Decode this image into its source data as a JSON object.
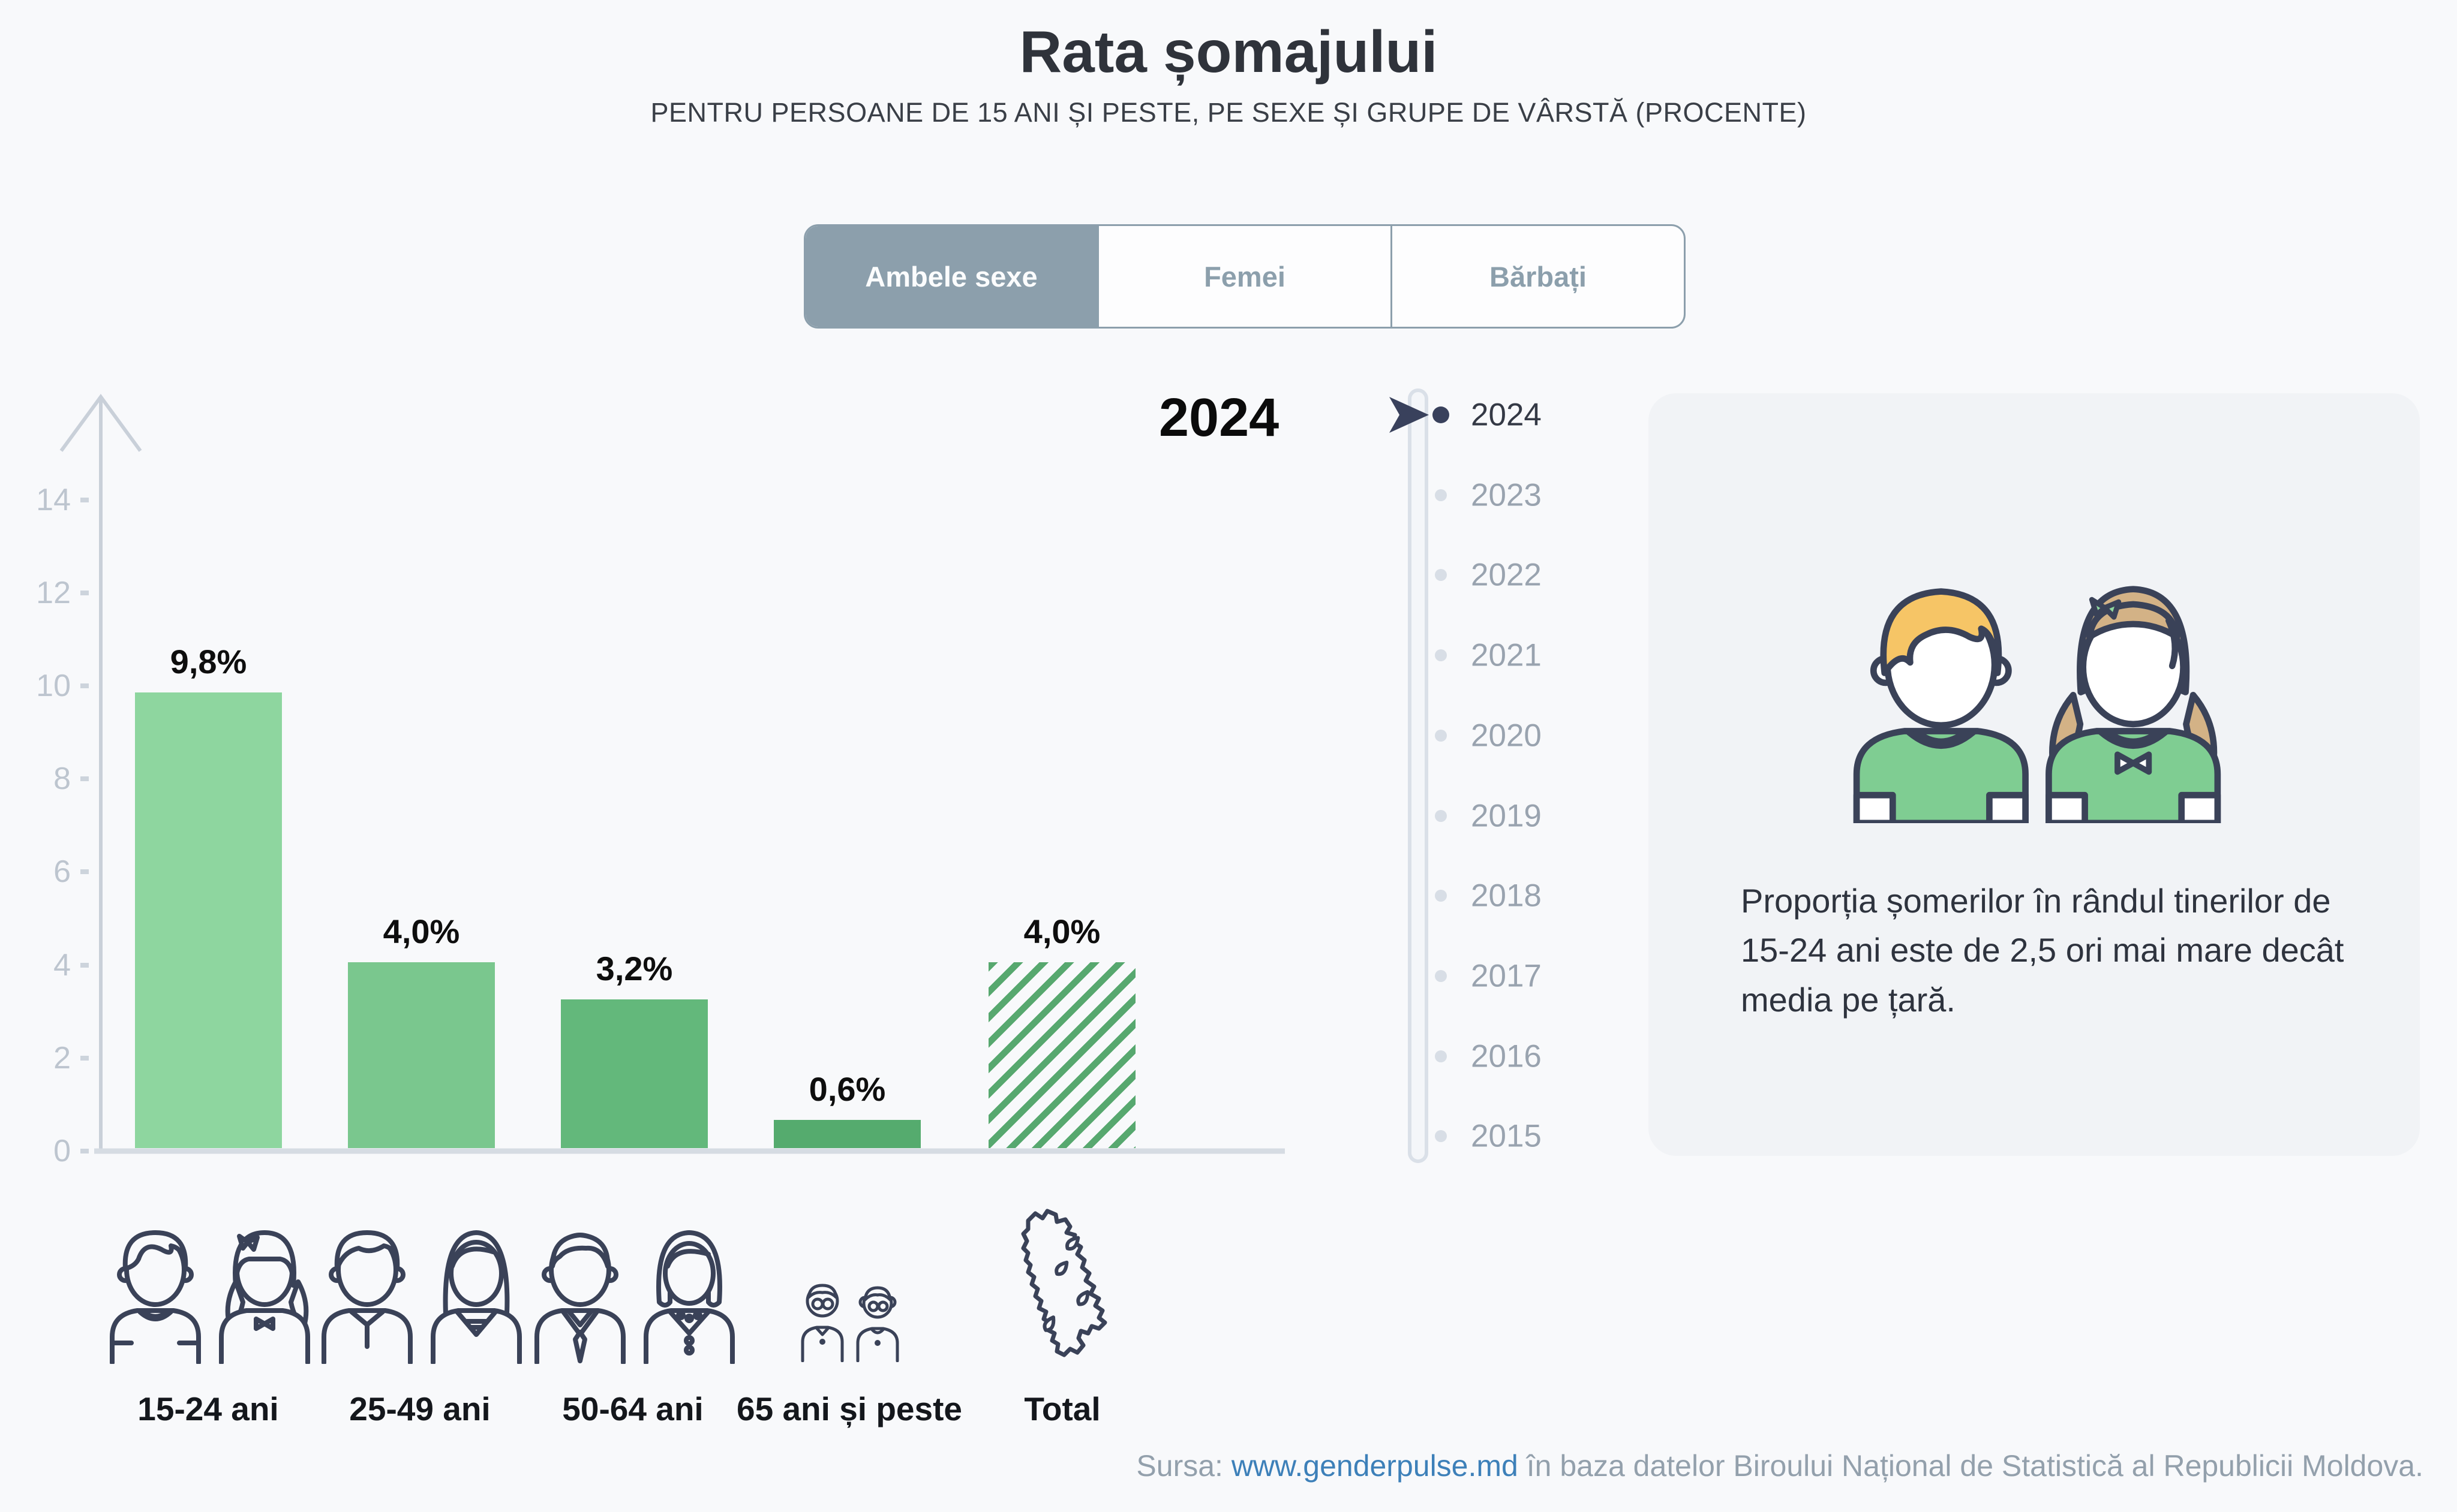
{
  "header": {
    "title": "Rata șomajului",
    "subtitle": "PENTRU PERSOANE DE 15 ANI ȘI PESTE, PE SEXE ȘI GRUPE DE VÂRSTĂ (PROCENTE)"
  },
  "tabs": {
    "items": [
      {
        "label": "Ambele sexe",
        "selected": true
      },
      {
        "label": "Femei",
        "selected": false
      },
      {
        "label": "Bărbați",
        "selected": false
      }
    ]
  },
  "chart_data": {
    "type": "bar",
    "title": "Rata șomajului",
    "subtitle": "Pentru persoane de 15 ani și peste, pe sexe și grupe de vârstă (procente)",
    "series_shown": "Ambele sexe",
    "year": "2024",
    "categories": [
      "15-24 ani",
      "25-49 ani",
      "50-64 ani",
      "65 ani și peste",
      "Total"
    ],
    "values": [
      9.8,
      4.0,
      3.2,
      0.6,
      4.0
    ],
    "value_labels": [
      "9,8%",
      "4,0%",
      "3,2%",
      "0,6%",
      "4,0%"
    ],
    "xlabel": "",
    "ylabel": "",
    "ylim": [
      0,
      15
    ],
    "yticks": [
      0,
      2,
      4,
      6,
      8,
      10,
      12,
      14
    ],
    "grid": false,
    "legend": "none",
    "bar_colors": [
      "#8ED69F",
      "#7AC78E",
      "#63B87B",
      "#55AB6E",
      "#57A86F"
    ],
    "hatch_category": "Total",
    "hatch_style": "diagonal-stripes"
  },
  "timeline": {
    "years": [
      "2024",
      "2023",
      "2022",
      "2021",
      "2020",
      "2019",
      "2018",
      "2017",
      "2016",
      "2015"
    ],
    "active_year": "2024"
  },
  "infobox": {
    "text": "Proporția șomerilor în rândul tinerilor de 15-24 ani este de 2,5 ori mai mare decât media pe țară."
  },
  "footer": {
    "prefix": "Sursa: ",
    "link_text": "www.genderpulse.md",
    "suffix": " în baza datelor Biroului Național de Statistică al Republicii Moldova."
  },
  "colors": {
    "page_bg": "#F8F9FB",
    "tab_selected_bg": "#8C9FAC",
    "bar_green_light": "#8ED69F",
    "bar_green_dark": "#55AB6E",
    "active_navy": "#39415C",
    "inactive_gray": "#99A3AF",
    "axis_gray": "#C9D0D9",
    "link_blue": "#3D80B9"
  }
}
